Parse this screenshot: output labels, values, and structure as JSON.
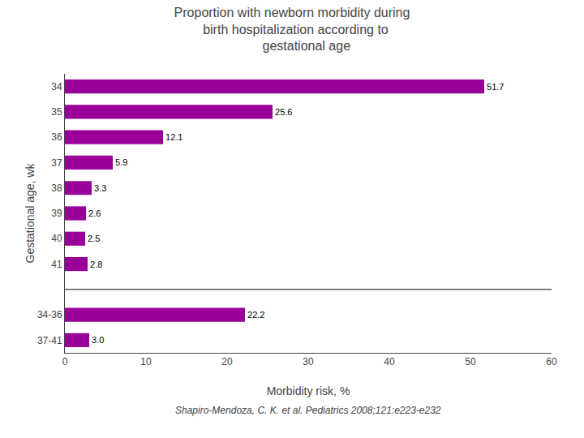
{
  "chart_data": {
    "type": "bar",
    "orientation": "horizontal",
    "title": "Proportion with newborn morbidity during\n  birth hospitalization according to\n        gestational age",
    "subtitle": "Shapiro-Mendoza, C. K. et al. Pediatrics 2008;121:e223-e232",
    "xlabel": "Morbidity risk, %",
    "ylabel": "Gestational age, wk",
    "categories": [
      "34",
      "35",
      "36",
      "37",
      "38",
      "39",
      "40",
      "41",
      null,
      "34-36",
      "37-41"
    ],
    "values": [
      51.7,
      25.6,
      12.1,
      5.9,
      3.3,
      2.6,
      2.5,
      2.8,
      null,
      22.2,
      3.0
    ],
    "value_labels": [
      "51.7",
      "25.6",
      "12.1",
      "5.9",
      "3.3",
      "2.6",
      "2.5",
      "2.8",
      null,
      "22.2",
      "3.0"
    ],
    "data_labels": true,
    "color": "#990099",
    "xlim": [
      0,
      60
    ],
    "xticks": [
      0,
      10,
      20,
      30,
      40,
      50,
      60
    ],
    "grid": false
  }
}
